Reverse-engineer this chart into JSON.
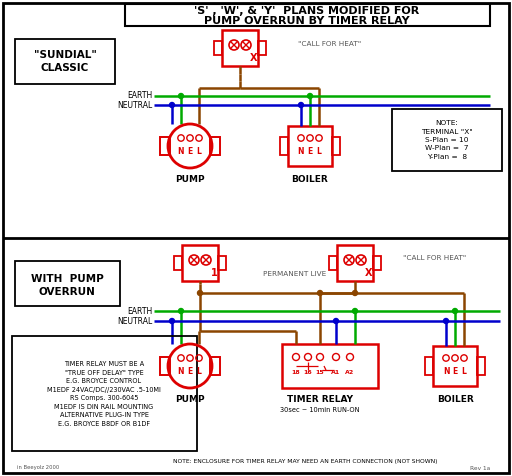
{
  "title_line1": "'S' , 'W', & 'Y'  PLANS MODIFIED FOR",
  "title_line2": "PUMP OVERRUN BY TIMER RELAY",
  "bg_color": "#ffffff",
  "red": "#dd0000",
  "green": "#00aa00",
  "blue": "#0000cc",
  "brown": "#8B4500",
  "black": "#000000",
  "gray": "#555555",
  "note_terminal": "NOTE:\nTERMINAL \"X\"\nS-Plan = 10\nW-Plan =  7\nY-Plan =  8",
  "note_timer": "TIMER RELAY MUST BE A\n\"TRUE OFF DELAY\" TYPE\nE.G. BROYCE CONTROL\nM1EDF 24VAC/DC//230VAC .5-10MI\nRS Comps. 300-6045\nM1EDF IS DIN RAIL MOUNTING\nALTERNATIVE PLUG-IN TYPE\nE.G. BROYCE B8DF OR B1DF",
  "note_bottom": "NOTE: ENCLOSURE FOR TIMER RELAY MAY NEED AN EARTH CONNECTION (NOT SHOWN)",
  "watermark_left": "in Beeyolz 2000",
  "watermark_right": "Rev 1a"
}
